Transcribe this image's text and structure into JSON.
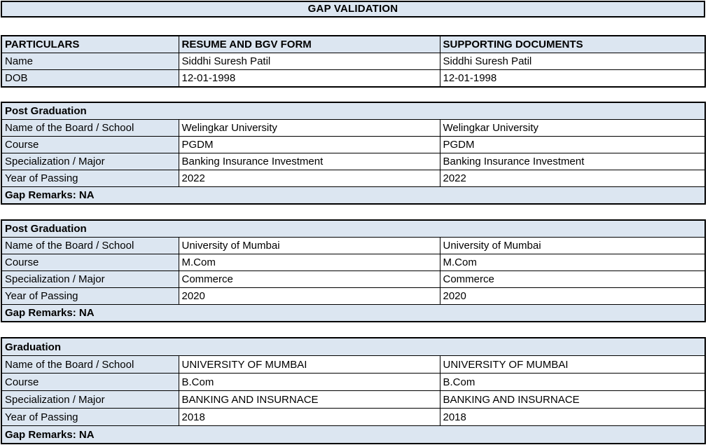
{
  "title": "GAP VALIDATION",
  "colors": {
    "header_fill": "#dce6f1",
    "border": "#000000",
    "text": "#000000"
  },
  "info_table": {
    "headers": [
      "PARTICULARS",
      "RESUME AND BGV FORM",
      "SUPPORTING DOCUMENTS"
    ],
    "rows": [
      {
        "label": "Name",
        "resume": "Siddhi Suresh Patil",
        "supporting": "Siddhi Suresh Patil"
      },
      {
        "label": "DOB",
        "resume": "12-01-1998",
        "supporting": "12-01-1998"
      }
    ]
  },
  "sections": [
    {
      "title": "Post Graduation",
      "rows": [
        {
          "label": "Name of the Board / School",
          "resume": "Welingkar University",
          "supporting": "Welingkar University"
        },
        {
          "label": "Course",
          "resume": "PGDM",
          "supporting": "PGDM"
        },
        {
          "label": "Specialization / Major",
          "resume": "Banking Insurance Investment",
          "supporting": "Banking Insurance Investment"
        },
        {
          "label": "Year of Passing",
          "resume": "2022",
          "supporting": "2022"
        }
      ],
      "gap_remarks": "Gap Remarks: NA"
    },
    {
      "title": "Post Graduation",
      "rows": [
        {
          "label": "Name of the Board / School",
          "resume": "University of Mumbai",
          "supporting": "University of Mumbai"
        },
        {
          "label": "Course",
          "resume": "M.Com",
          "supporting": "M.Com"
        },
        {
          "label": "Specialization / Major",
          "resume": "Commerce",
          "supporting": "Commerce"
        },
        {
          "label": "Year of Passing",
          "resume": "2020",
          "supporting": "2020"
        }
      ],
      "gap_remarks": "Gap Remarks: NA"
    },
    {
      "title": "Graduation",
      "rows": [
        {
          "label": "Name of the Board / School",
          "resume": "UNIVERSITY OF MUMBAI",
          "supporting": "UNIVERSITY OF MUMBAI"
        },
        {
          "label": "Course",
          "resume": "B.Com",
          "supporting": "B.Com"
        },
        {
          "label": "Specialization / Major",
          "resume": "BANKING AND INSURNACE",
          "supporting": "BANKING AND INSURNACE"
        },
        {
          "label": "Year of Passing",
          "resume": "2018",
          "supporting": "2018"
        }
      ],
      "gap_remarks": "Gap Remarks: NA"
    }
  ]
}
